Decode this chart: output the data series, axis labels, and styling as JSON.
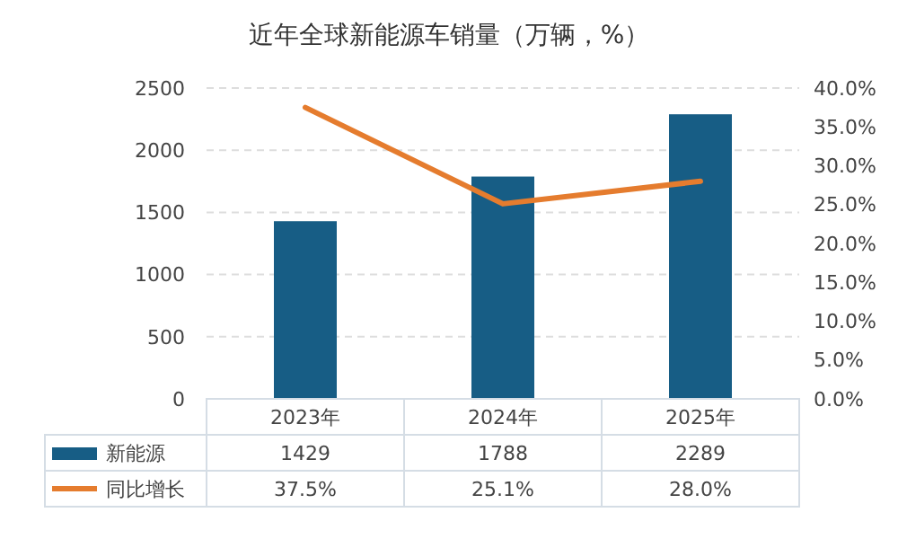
{
  "chart_data": {
    "type": "bar",
    "title": "近年全球新能源车销量（万辆，%）",
    "categories": [
      "2023年",
      "2024年",
      "2025年"
    ],
    "series": [
      {
        "name": "新能源",
        "color": "#175d85",
        "values": [
          1429,
          1788,
          2289
        ],
        "value_labels": [
          "1429",
          "1788",
          "2289"
        ]
      },
      {
        "name": "同比增长",
        "type": "line",
        "axis": "y2",
        "color": "#e57c2e",
        "values": [
          37.5,
          25.1,
          28.0
        ],
        "value_labels": [
          "37.5%",
          "25.1%",
          "28.0%"
        ]
      }
    ],
    "ylim": [
      0,
      2500
    ],
    "yticks": [
      0,
      500,
      1000,
      1500,
      2000,
      2500
    ],
    "y2lim": [
      0,
      40
    ],
    "y2ticks": [
      {
        "value": 0,
        "label": "0.0%"
      },
      {
        "value": 5,
        "label": "5.0%"
      },
      {
        "value": 10,
        "label": "10.0%"
      },
      {
        "value": 15,
        "label": "15.0%"
      },
      {
        "value": 20,
        "label": "20.0%"
      },
      {
        "value": 25,
        "label": "25.0%"
      },
      {
        "value": 30,
        "label": "30.0%"
      },
      {
        "value": 35,
        "label": "35.0%"
      },
      {
        "value": 40,
        "label": "40.0%"
      }
    ],
    "grid": "y",
    "legend": "bottom",
    "marker": "none"
  }
}
